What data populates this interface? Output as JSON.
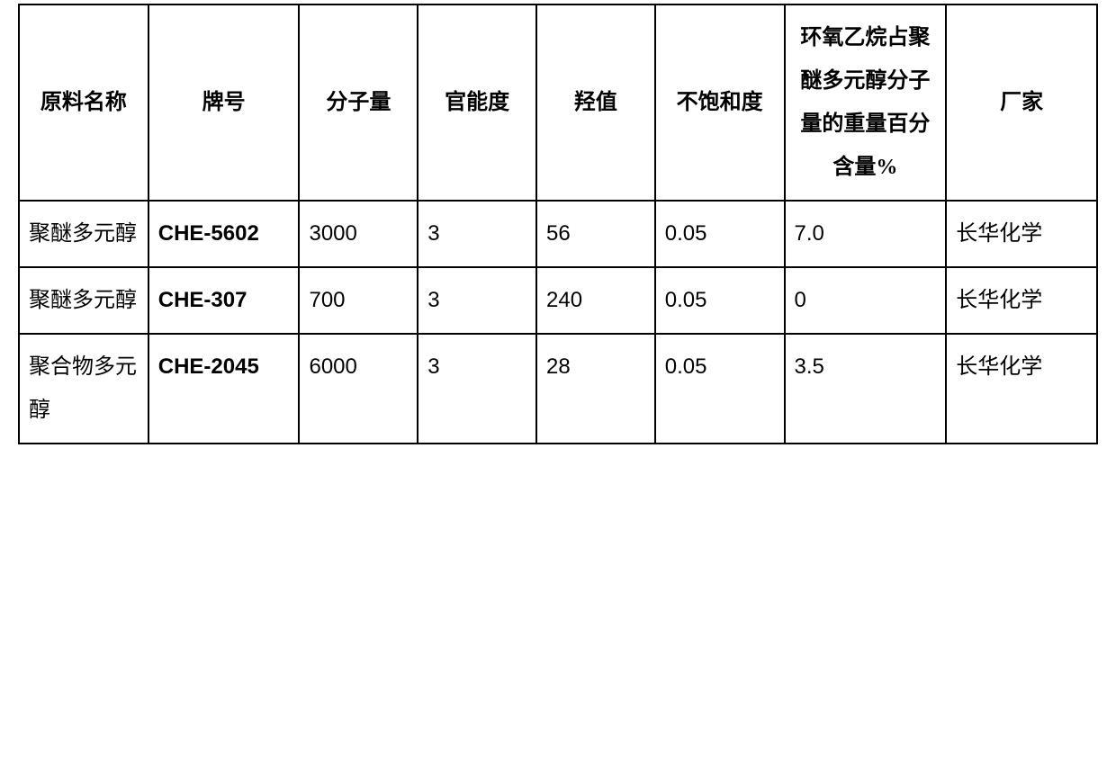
{
  "table": {
    "columns": [
      {
        "label": "原料名称",
        "width": "12%",
        "align": "center"
      },
      {
        "label": "牌号",
        "width": "14%",
        "align": "center"
      },
      {
        "label": "分子量",
        "width": "11%",
        "align": "center"
      },
      {
        "label": "官能度",
        "width": "11%",
        "align": "center"
      },
      {
        "label": "羟值",
        "width": "11%",
        "align": "center"
      },
      {
        "label": "不饱和度",
        "width": "12%",
        "align": "center"
      },
      {
        "label": "环氧乙烷占聚醚多元醇分子量的重量百分含量%",
        "width": "15%",
        "align": "center"
      },
      {
        "label": "厂家",
        "width": "14%",
        "align": "center"
      }
    ],
    "rows": [
      {
        "name": "聚醚多元醇",
        "grade": "CHE-5602",
        "mw": "3000",
        "func": "3",
        "oh": "56",
        "unsat": "0.05",
        "eo": "7.0",
        "maker": "长华化学"
      },
      {
        "name": "聚醚多元醇",
        "grade": "CHE-307",
        "mw": "700",
        "func": "3",
        "oh": "240",
        "unsat": "0.05",
        "eo": "0",
        "maker": "长华化学"
      },
      {
        "name": "聚合物多元醇",
        "grade": "CHE-2045",
        "mw": "6000",
        "func": "3",
        "oh": "28",
        "unsat": "0.05",
        "eo": "3.5",
        "maker": "长华化学"
      }
    ],
    "border_color": "#000000",
    "background_color": "#ffffff",
    "header_fontsize": 24,
    "cell_fontsize": 24,
    "font_family_cjk": "SimSun",
    "font_family_latin": "Arial"
  }
}
